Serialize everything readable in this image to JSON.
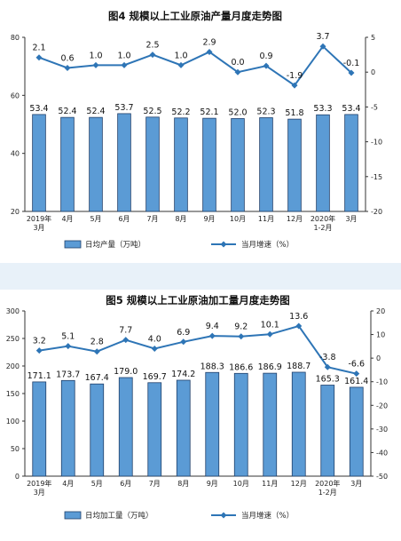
{
  "colors": {
    "bar_fill": "#5b9bd5",
    "bar_stroke": "#1f3f6a",
    "line": "#2e75b6",
    "axis": "#333333",
    "page_background": "#e8f1f9"
  },
  "chart_data": [
    {
      "type": "bar",
      "title": "图4  规模以上工业原油产量月度走势图",
      "categories": [
        "2019年\n3月",
        "4月",
        "5月",
        "6月",
        "7月",
        "8月",
        "9月",
        "10月",
        "11月",
        "12月",
        "2020年\n1-2月",
        "3月"
      ],
      "series": [
        {
          "name": "日均产量（万吨）",
          "type": "bar",
          "axis": "left",
          "values": [
            53.4,
            52.4,
            52.4,
            53.7,
            52.5,
            52.2,
            52.1,
            52.0,
            52.3,
            51.8,
            53.3,
            53.4
          ]
        },
        {
          "name": "当月增速（%）",
          "type": "line",
          "axis": "right",
          "values": [
            2.1,
            0.6,
            1.0,
            1.0,
            2.5,
            1.0,
            2.9,
            0.0,
            0.9,
            -1.9,
            3.7,
            -0.1
          ]
        }
      ],
      "y_left": {
        "ylim": [
          20,
          80
        ],
        "ticks": [
          20,
          40,
          60,
          80
        ]
      },
      "y_right": {
        "ylim": [
          -20,
          5
        ],
        "ticks": [
          5,
          0,
          -5,
          -10,
          -15,
          -20
        ]
      },
      "grid": false,
      "legend": "bottom"
    },
    {
      "type": "bar",
      "title": "图5  规模以上工业原油加工量月度走势图",
      "categories": [
        "2019年\n3月",
        "4月",
        "5月",
        "6月",
        "7月",
        "8月",
        "9月",
        "10月",
        "11月",
        "12月",
        "2020年\n1-2月",
        "3月"
      ],
      "series": [
        {
          "name": "日均加工量（万吨）",
          "type": "bar",
          "axis": "left",
          "values": [
            171.1,
            173.7,
            167.4,
            179.0,
            169.7,
            174.2,
            188.3,
            186.6,
            186.9,
            188.7,
            165.3,
            161.4
          ]
        },
        {
          "name": "当月增速（%）",
          "type": "line",
          "axis": "right",
          "values": [
            3.2,
            5.1,
            2.8,
            7.7,
            4.0,
            6.9,
            9.4,
            9.2,
            10.1,
            13.6,
            -3.8,
            -6.6
          ]
        }
      ],
      "y_left": {
        "ylim": [
          0,
          300
        ],
        "ticks": [
          0,
          50,
          100,
          150,
          200,
          250,
          300
        ]
      },
      "y_right": {
        "ylim": [
          -50,
          20
        ],
        "ticks": [
          20,
          10,
          0,
          -10,
          -20,
          -30,
          -40,
          -50
        ]
      },
      "grid": false,
      "legend": "bottom"
    }
  ]
}
